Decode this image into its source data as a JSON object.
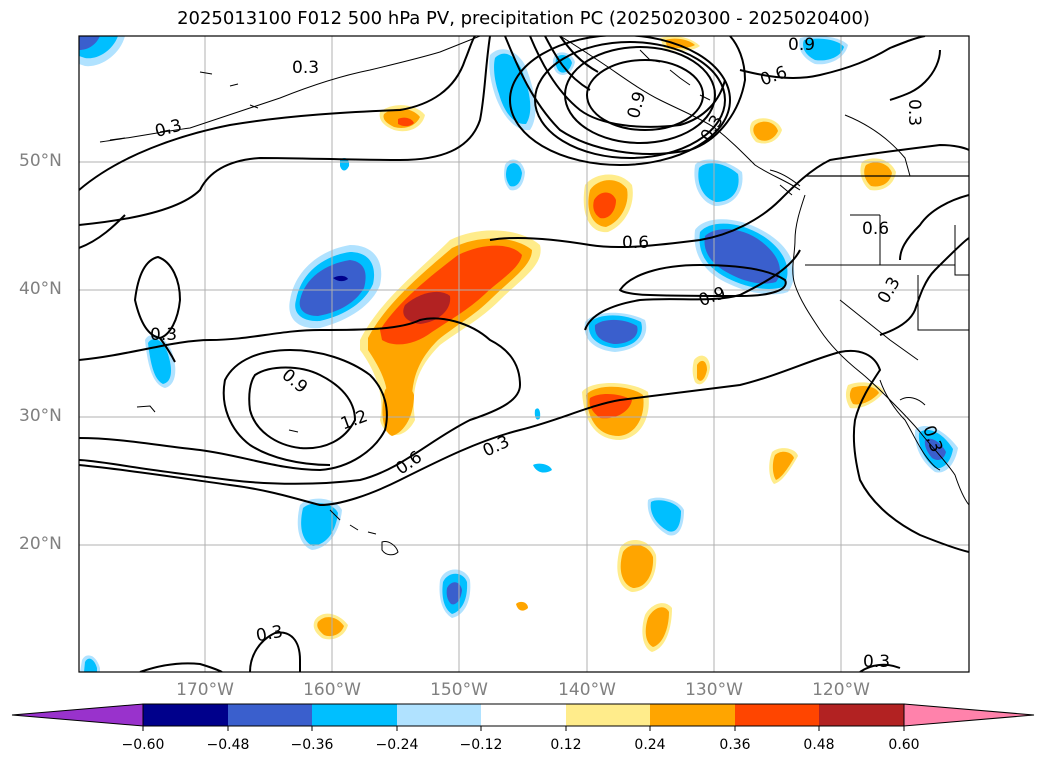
{
  "title": "2025013100 F012 500 hPa PV, precipitation PC (2025020300 - 2025020400)",
  "map": {
    "lat_labels": [
      "50°N",
      "40°N",
      "30°N",
      "20°N"
    ],
    "lon_labels": [
      "170°W",
      "160°W",
      "150°W",
      "140°W",
      "130°W",
      "120°W"
    ],
    "pv_contour_labels": [
      "0.3",
      "0.3",
      "0.3",
      "0.3",
      "0.3",
      "0.3",
      "0.3",
      "0.3",
      "0.3",
      "0.6",
      "0.6",
      "0.6",
      "0.6",
      "0.9",
      "0.9",
      "0.9",
      "0.9",
      "1.2",
      "0.3"
    ]
  },
  "colorbar": {
    "colors": [
      "#9932cc",
      "#00008b",
      "#3a5fcd",
      "#00bfff",
      "#b0e2ff",
      "#ffffff",
      "#ffec8b",
      "#ffa500",
      "#ff4500",
      "#b22222",
      "#ff82ab"
    ],
    "tick_labels": [
      "−0.60",
      "−0.48",
      "−0.36",
      "−0.24",
      "−0.12",
      "0.12",
      "0.24",
      "0.36",
      "0.48",
      "0.60"
    ]
  }
}
